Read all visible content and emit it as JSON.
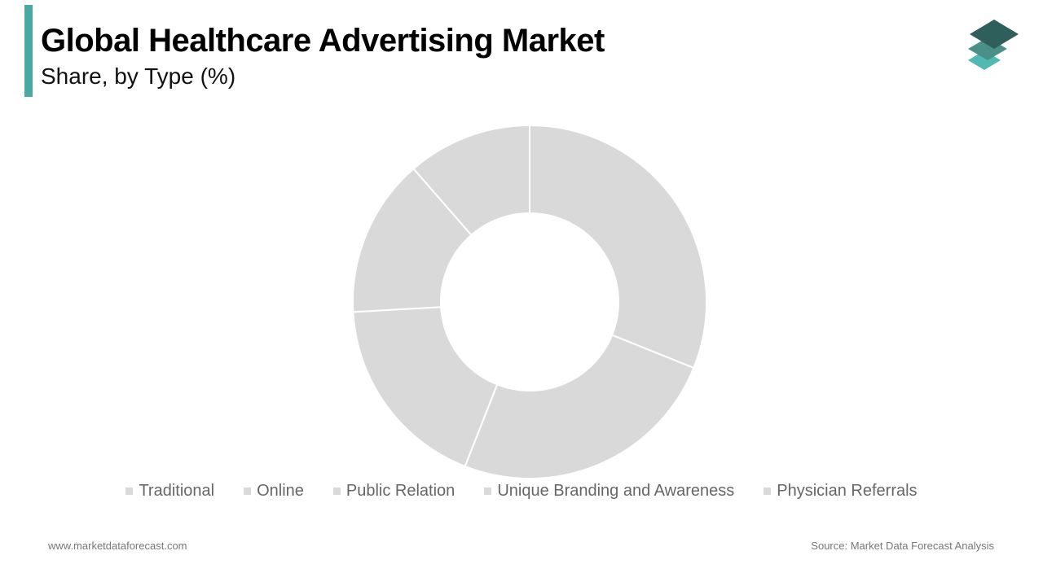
{
  "header": {
    "title": "Global Healthcare Advertising Market",
    "subtitle": "Share, by Type (%)",
    "accent_color": "#4aa8a2"
  },
  "logo": {
    "icon": "stacked-layers-icon",
    "colors": [
      "#2e5f5a",
      "#4a8f88",
      "#52b9b2"
    ]
  },
  "chart_data": {
    "type": "pie",
    "donut": true,
    "categories": [
      "Traditional",
      "Online",
      "Public Relation",
      "Unique Branding and Awareness",
      "Physician Referrals"
    ],
    "values": [
      30,
      24,
      17.5,
      14,
      11
    ],
    "colors": [
      "#d9d9d9",
      "#d9d9d9",
      "#d9d9d9",
      "#d9d9d9",
      "#d9d9d9"
    ],
    "legend_position": "bottom"
  },
  "legend": {
    "items": [
      {
        "label": "Traditional",
        "color": "#d9d9d9"
      },
      {
        "label": "Online",
        "color": "#d9d9d9"
      },
      {
        "label": "Public Relation",
        "color": "#d9d9d9"
      },
      {
        "label": "Unique Branding and Awareness",
        "color": "#d9d9d9"
      },
      {
        "label": "Physician Referrals",
        "color": "#d9d9d9"
      }
    ]
  },
  "footer": {
    "website": "www.marketdataforecast.com",
    "source": "Source: Market Data Forecast Analysis"
  }
}
